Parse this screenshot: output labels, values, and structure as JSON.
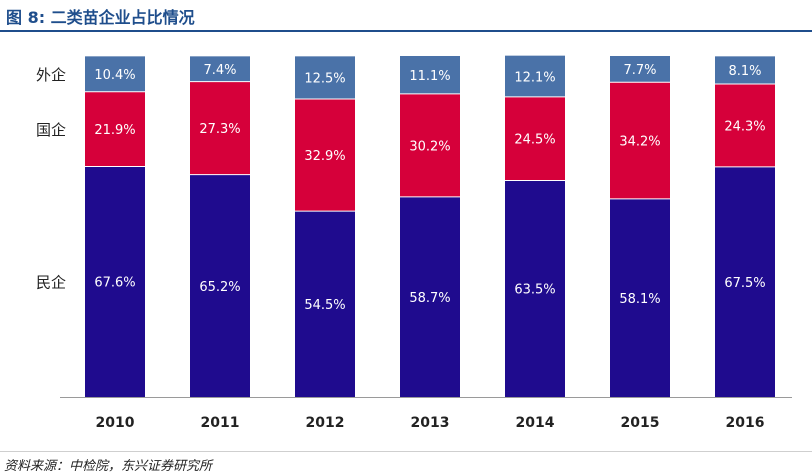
{
  "figure": {
    "title": "图 8: 二类苗企业占比情况",
    "source": "资料来源：中检院，东兴证券研究所"
  },
  "chart_data": {
    "type": "bar",
    "stacked": true,
    "unit": "%",
    "categories": [
      "2010",
      "2011",
      "2012",
      "2013",
      "2014",
      "2015",
      "2016"
    ],
    "series": [
      {
        "name": "民企",
        "color": "#1f0b8e",
        "values": [
          67.6,
          65.2,
          54.5,
          58.7,
          63.5,
          58.1,
          67.5
        ]
      },
      {
        "name": "国企",
        "color": "#d6003a",
        "values": [
          21.9,
          27.3,
          32.9,
          30.2,
          24.5,
          34.2,
          24.3
        ]
      },
      {
        "name": "外企",
        "color": "#4a72a8",
        "values": [
          10.4,
          7.4,
          12.5,
          11.1,
          12.1,
          7.7,
          8.1
        ]
      }
    ],
    "ylim": [
      0,
      100
    ],
    "grid": false,
    "legend": "left, labels aligned with the first bar's segments"
  }
}
